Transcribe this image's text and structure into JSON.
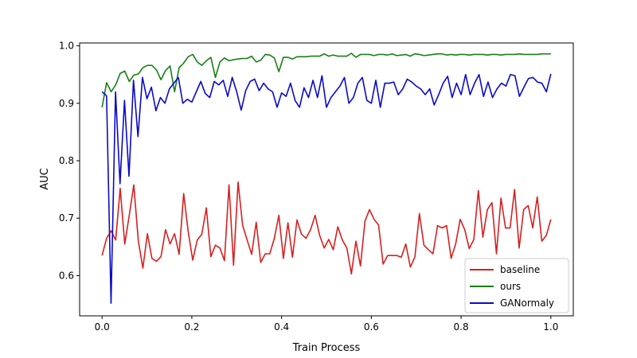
{
  "chart_data": {
    "type": "line",
    "title": "",
    "xlabel": "Train Process",
    "ylabel": "AUC",
    "xlim": [
      -0.05,
      1.05
    ],
    "ylim": [
      0.53,
      1.005
    ],
    "xticks": [
      0.0,
      0.2,
      0.4,
      0.6,
      0.8,
      1.0
    ],
    "xtick_labels": [
      "0.0",
      "0.2",
      "0.4",
      "0.6",
      "0.8",
      "1.0"
    ],
    "yticks": [
      0.6,
      0.7,
      0.8,
      0.9,
      1.0
    ],
    "ytick_labels": [
      "0.6",
      "0.7",
      "0.8",
      "0.9",
      "1.0"
    ],
    "grid": false,
    "legend_position": "lower-right",
    "series": [
      {
        "name": "baseline",
        "color": "#d62020",
        "values": [
          0.635,
          0.665,
          0.678,
          0.662,
          0.752,
          0.655,
          0.705,
          0.758,
          0.66,
          0.613,
          0.673,
          0.63,
          0.625,
          0.633,
          0.68,
          0.655,
          0.673,
          0.637,
          0.743,
          0.677,
          0.627,
          0.662,
          0.672,
          0.718,
          0.633,
          0.653,
          0.648,
          0.626,
          0.758,
          0.618,
          0.763,
          0.688,
          0.662,
          0.637,
          0.693,
          0.623,
          0.638,
          0.638,
          0.665,
          0.705,
          0.63,
          0.692,
          0.632,
          0.697,
          0.672,
          0.665,
          0.68,
          0.705,
          0.67,
          0.648,
          0.663,
          0.645,
          0.685,
          0.662,
          0.648,
          0.603,
          0.66,
          0.617,
          0.695,
          0.715,
          0.698,
          0.688,
          0.62,
          0.635,
          0.635,
          0.635,
          0.632,
          0.655,
          0.615,
          0.632,
          0.708,
          0.653,
          0.645,
          0.638,
          0.687,
          0.683,
          0.687,
          0.63,
          0.655,
          0.698,
          0.68,
          0.647,
          0.663,
          0.748,
          0.667,
          0.715,
          0.727,
          0.638,
          0.735,
          0.683,
          0.683,
          0.75,
          0.648,
          0.715,
          0.722,
          0.683,
          0.737,
          0.66,
          0.67,
          0.698
        ]
      },
      {
        "name": "ours",
        "color": "#178017",
        "values": [
          0.893,
          0.936,
          0.92,
          0.932,
          0.952,
          0.956,
          0.938,
          0.949,
          0.951,
          0.962,
          0.966,
          0.966,
          0.958,
          0.941,
          0.957,
          0.965,
          0.92,
          0.962,
          0.97,
          0.981,
          0.985,
          0.972,
          0.966,
          0.974,
          0.98,
          0.945,
          0.972,
          0.979,
          0.974,
          0.976,
          0.977,
          0.978,
          0.978,
          0.982,
          0.972,
          0.975,
          0.985,
          0.984,
          0.979,
          0.955,
          0.98,
          0.98,
          0.977,
          0.981,
          0.981,
          0.981,
          0.982,
          0.982,
          0.982,
          0.986,
          0.982,
          0.984,
          0.982,
          0.982,
          0.982,
          0.987,
          0.98,
          0.985,
          0.985,
          0.985,
          0.983,
          0.985,
          0.985,
          0.984,
          0.986,
          0.983,
          0.984,
          0.985,
          0.982,
          0.986,
          0.985,
          0.983,
          0.984,
          0.985,
          0.986,
          0.986,
          0.984,
          0.985,
          0.984,
          0.985,
          0.985,
          0.984,
          0.985,
          0.985,
          0.985,
          0.984,
          0.985,
          0.985,
          0.984,
          0.985,
          0.985,
          0.985,
          0.986,
          0.985,
          0.985,
          0.985,
          0.985,
          0.986,
          0.986,
          0.986
        ]
      },
      {
        "name": "GANormaly",
        "color": "#0a0ac8",
        "values": [
          0.92,
          0.913,
          0.552,
          0.92,
          0.76,
          0.905,
          0.773,
          0.94,
          0.842,
          0.945,
          0.908,
          0.928,
          0.887,
          0.91,
          0.9,
          0.925,
          0.935,
          0.945,
          0.9,
          0.907,
          0.902,
          0.92,
          0.938,
          0.917,
          0.91,
          0.938,
          0.932,
          0.94,
          0.912,
          0.945,
          0.92,
          0.888,
          0.922,
          0.938,
          0.942,
          0.922,
          0.935,
          0.925,
          0.92,
          0.893,
          0.918,
          0.912,
          0.935,
          0.905,
          0.893,
          0.927,
          0.91,
          0.94,
          0.91,
          0.948,
          0.893,
          0.91,
          0.92,
          0.93,
          0.945,
          0.9,
          0.91,
          0.935,
          0.945,
          0.905,
          0.9,
          0.94,
          0.893,
          0.935,
          0.935,
          0.937,
          0.915,
          0.925,
          0.942,
          0.937,
          0.93,
          0.925,
          0.915,
          0.925,
          0.897,
          0.915,
          0.935,
          0.947,
          0.91,
          0.935,
          0.915,
          0.95,
          0.915,
          0.935,
          0.95,
          0.912,
          0.937,
          0.91,
          0.925,
          0.935,
          0.93,
          0.95,
          0.948,
          0.912,
          0.928,
          0.943,
          0.945,
          0.937,
          0.935,
          0.92,
          0.951
        ]
      }
    ]
  }
}
